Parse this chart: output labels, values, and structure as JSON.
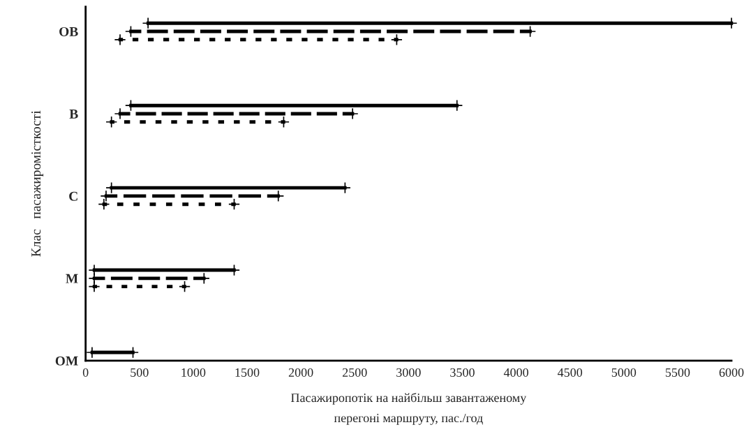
{
  "chart_data": {
    "type": "bar",
    "orientation": "horizontal",
    "xlabel": "Пасажиропотік на найбільш завантаженому\nперегоні маршруту, пас./год",
    "ylabel": "Клас   пасажиромісткості",
    "categories": [
      "ОВ",
      "В",
      "С",
      "М",
      "ОМ"
    ],
    "xlim": [
      0,
      6000
    ],
    "xticks": [
      0,
      500,
      1000,
      1500,
      2000,
      2500,
      3000,
      3500,
      4000,
      4500,
      5000,
      5500,
      6000
    ],
    "marker": "cross",
    "grid": false,
    "legend": false,
    "series": [
      {
        "color": "#000000",
        "line_style": "solid",
        "base": [
          580,
          420,
          240,
          80,
          60
        ],
        "values": [
          5420,
          3030,
          2170,
          1300,
          380
        ]
      },
      {
        "color": "#000000",
        "line_style": "dashed",
        "base": [
          420,
          320,
          190,
          80,
          null
        ],
        "values": [
          3710,
          2160,
          1600,
          1020,
          null
        ]
      },
      {
        "color": "#000000",
        "line_style": "dotted",
        "base": [
          320,
          240,
          170,
          80,
          null
        ],
        "values": [
          2570,
          1600,
          1210,
          840,
          null
        ]
      }
    ]
  }
}
